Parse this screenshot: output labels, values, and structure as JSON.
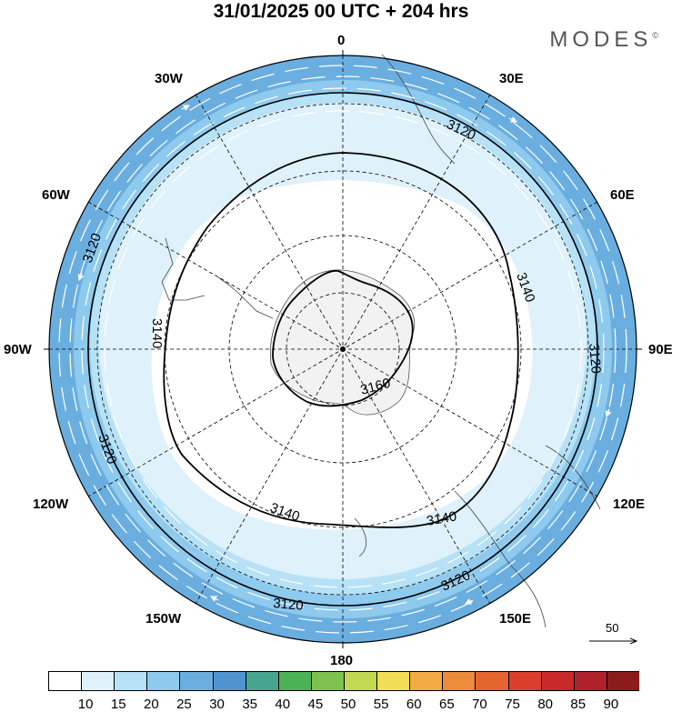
{
  "header": {
    "title": "31/01/2025  00 UTC  + 204 hrs",
    "brand": "MODES",
    "brand_mark": "©"
  },
  "longitude_labels": {
    "n0": "0",
    "w30": "30W",
    "e30": "30E",
    "w60": "60W",
    "e60": "60E",
    "w90": "90W",
    "e90": "90E",
    "w120": "120W",
    "e120": "120E",
    "w150": "150W",
    "e150": "150E",
    "s180": "180"
  },
  "contours": {
    "c3120": "3120",
    "c3140": "3140",
    "c3160": "3160"
  },
  "wind_reference": {
    "label": "50"
  },
  "colorbar": {
    "colors": [
      "#ffffff",
      "#dff1fb",
      "#b6e1f6",
      "#8ecaee",
      "#6aaee0",
      "#4f94cf",
      "#47a58f",
      "#4bb356",
      "#7dc24f",
      "#c2d953",
      "#f2de56",
      "#f3ab43",
      "#ed8a3b",
      "#e5652f",
      "#d93f2c",
      "#c82a2b",
      "#b0222b",
      "#8c1c1c"
    ],
    "labels": [
      "10",
      "15",
      "20",
      "25",
      "30",
      "35",
      "40",
      "45",
      "50",
      "55",
      "60",
      "65",
      "70",
      "75",
      "80",
      "85",
      "90"
    ]
  }
}
